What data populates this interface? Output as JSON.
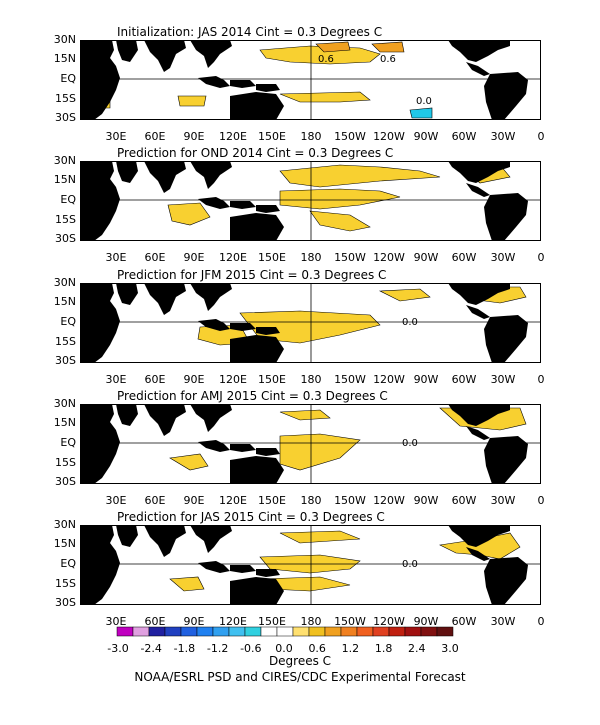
{
  "panels": [
    {
      "title": "Initialization: JAS 2014  Cint = 0.3 Degrees C",
      "contour_labels": [
        "0.6",
        "0.6",
        "0.0"
      ]
    },
    {
      "title": "Prediction for OND 2014  Cint = 0.3 Degrees C",
      "contour_labels": []
    },
    {
      "title": "Prediction for JFM 2015  Cint = 0.3 Degrees C",
      "contour_labels": [
        "0.0"
      ]
    },
    {
      "title": "Prediction for AMJ 2015  Cint = 0.3 Degrees C",
      "contour_labels": [
        "0.0"
      ]
    },
    {
      "title": "Prediction for JAS 2015  Cint = 0.3 Degrees C",
      "contour_labels": [
        "0.0"
      ]
    }
  ],
  "lat_labels": [
    "30N",
    "15N",
    "EQ",
    "15S",
    "30S"
  ],
  "lon_labels": [
    "30E",
    "60E",
    "90E",
    "120E",
    "150E",
    "180",
    "150W",
    "120W",
    "90W",
    "60W",
    "30W",
    "0"
  ],
  "colorbar": {
    "labels": [
      "-3.0",
      "-2.4",
      "-1.8",
      "-1.2",
      "-0.6",
      "0.0",
      "0.6",
      "1.2",
      "1.8",
      "2.4",
      "3.0"
    ],
    "colors": [
      "#c000c0",
      "#e0a0e0",
      "#2020a0",
      "#2040c0",
      "#2060e0",
      "#2080f0",
      "#30a0f0",
      "#40c0f0",
      "#30d0e0",
      "#ffffff",
      "#ffffff",
      "#ffe070",
      "#f0c020",
      "#f0a020",
      "#f08020",
      "#f06020",
      "#e04020",
      "#c02010",
      "#a01010",
      "#801010",
      "#601010"
    ],
    "units": "Degrees C"
  },
  "credit": "NOAA/ESRL PSD and CIRES/CDC Experimental Forecast",
  "style": {
    "land": "#000000",
    "warm_fill": "#f8d030",
    "warm2_fill": "#f0a020",
    "cold_fill": "#20c8e8"
  }
}
